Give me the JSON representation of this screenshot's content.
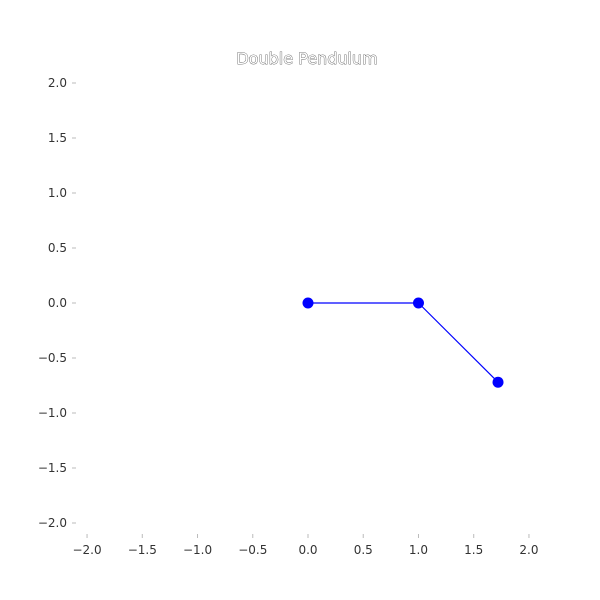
{
  "chart_data": {
    "type": "line",
    "title": "Double Pendulum",
    "xlabel": "",
    "ylabel": "",
    "xlim": [
      -2.1,
      2.1
    ],
    "ylim": [
      -2.1,
      2.1
    ],
    "x_ticks": [
      -2.0,
      -1.5,
      -1.0,
      -0.5,
      0.0,
      0.5,
      1.0,
      1.5,
      2.0
    ],
    "y_ticks": [
      2.0,
      1.5,
      1.0,
      0.5,
      0.0,
      -0.5,
      -1.0,
      -1.5,
      -2.0
    ],
    "x_tick_labels": [
      "−2.0",
      "−1.5",
      "−1.0",
      "−0.5",
      "0.0",
      "0.5",
      "1.0",
      "1.5",
      "2.0"
    ],
    "y_tick_labels": [
      "2.0",
      "1.5",
      "1.0",
      "0.5",
      "0.0",
      "−0.5",
      "−1.0",
      "−1.5",
      "−2.0"
    ],
    "grid": false,
    "series": [
      {
        "x": [
          0.0,
          1.0,
          1.72
        ],
        "y": [
          0.0,
          0.0,
          -0.72
        ],
        "color": "#0000ff",
        "marker": "circle"
      }
    ]
  }
}
